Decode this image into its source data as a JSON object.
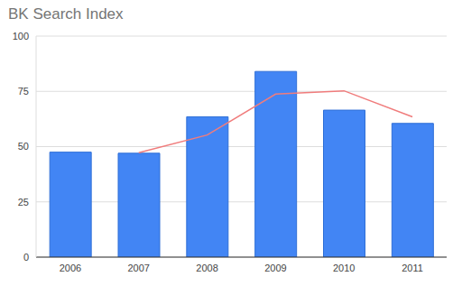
{
  "chart_data": {
    "type": "bar",
    "title": "BK Search Index",
    "categories": [
      "2006",
      "2007",
      "2008",
      "2009",
      "2010",
      "2011"
    ],
    "series": [
      {
        "type": "bar",
        "color": "#4285f4",
        "values": [
          47.5,
          47,
          63.5,
          84,
          66.5,
          60.5
        ]
      },
      {
        "type": "line",
        "color": "#f07c7c",
        "values": [
          null,
          47.25,
          55.25,
          73.75,
          75.25,
          63.5
        ]
      }
    ],
    "ylim": [
      0,
      100
    ],
    "yticks": [
      0,
      25,
      50,
      75,
      100
    ],
    "grid": true
  }
}
